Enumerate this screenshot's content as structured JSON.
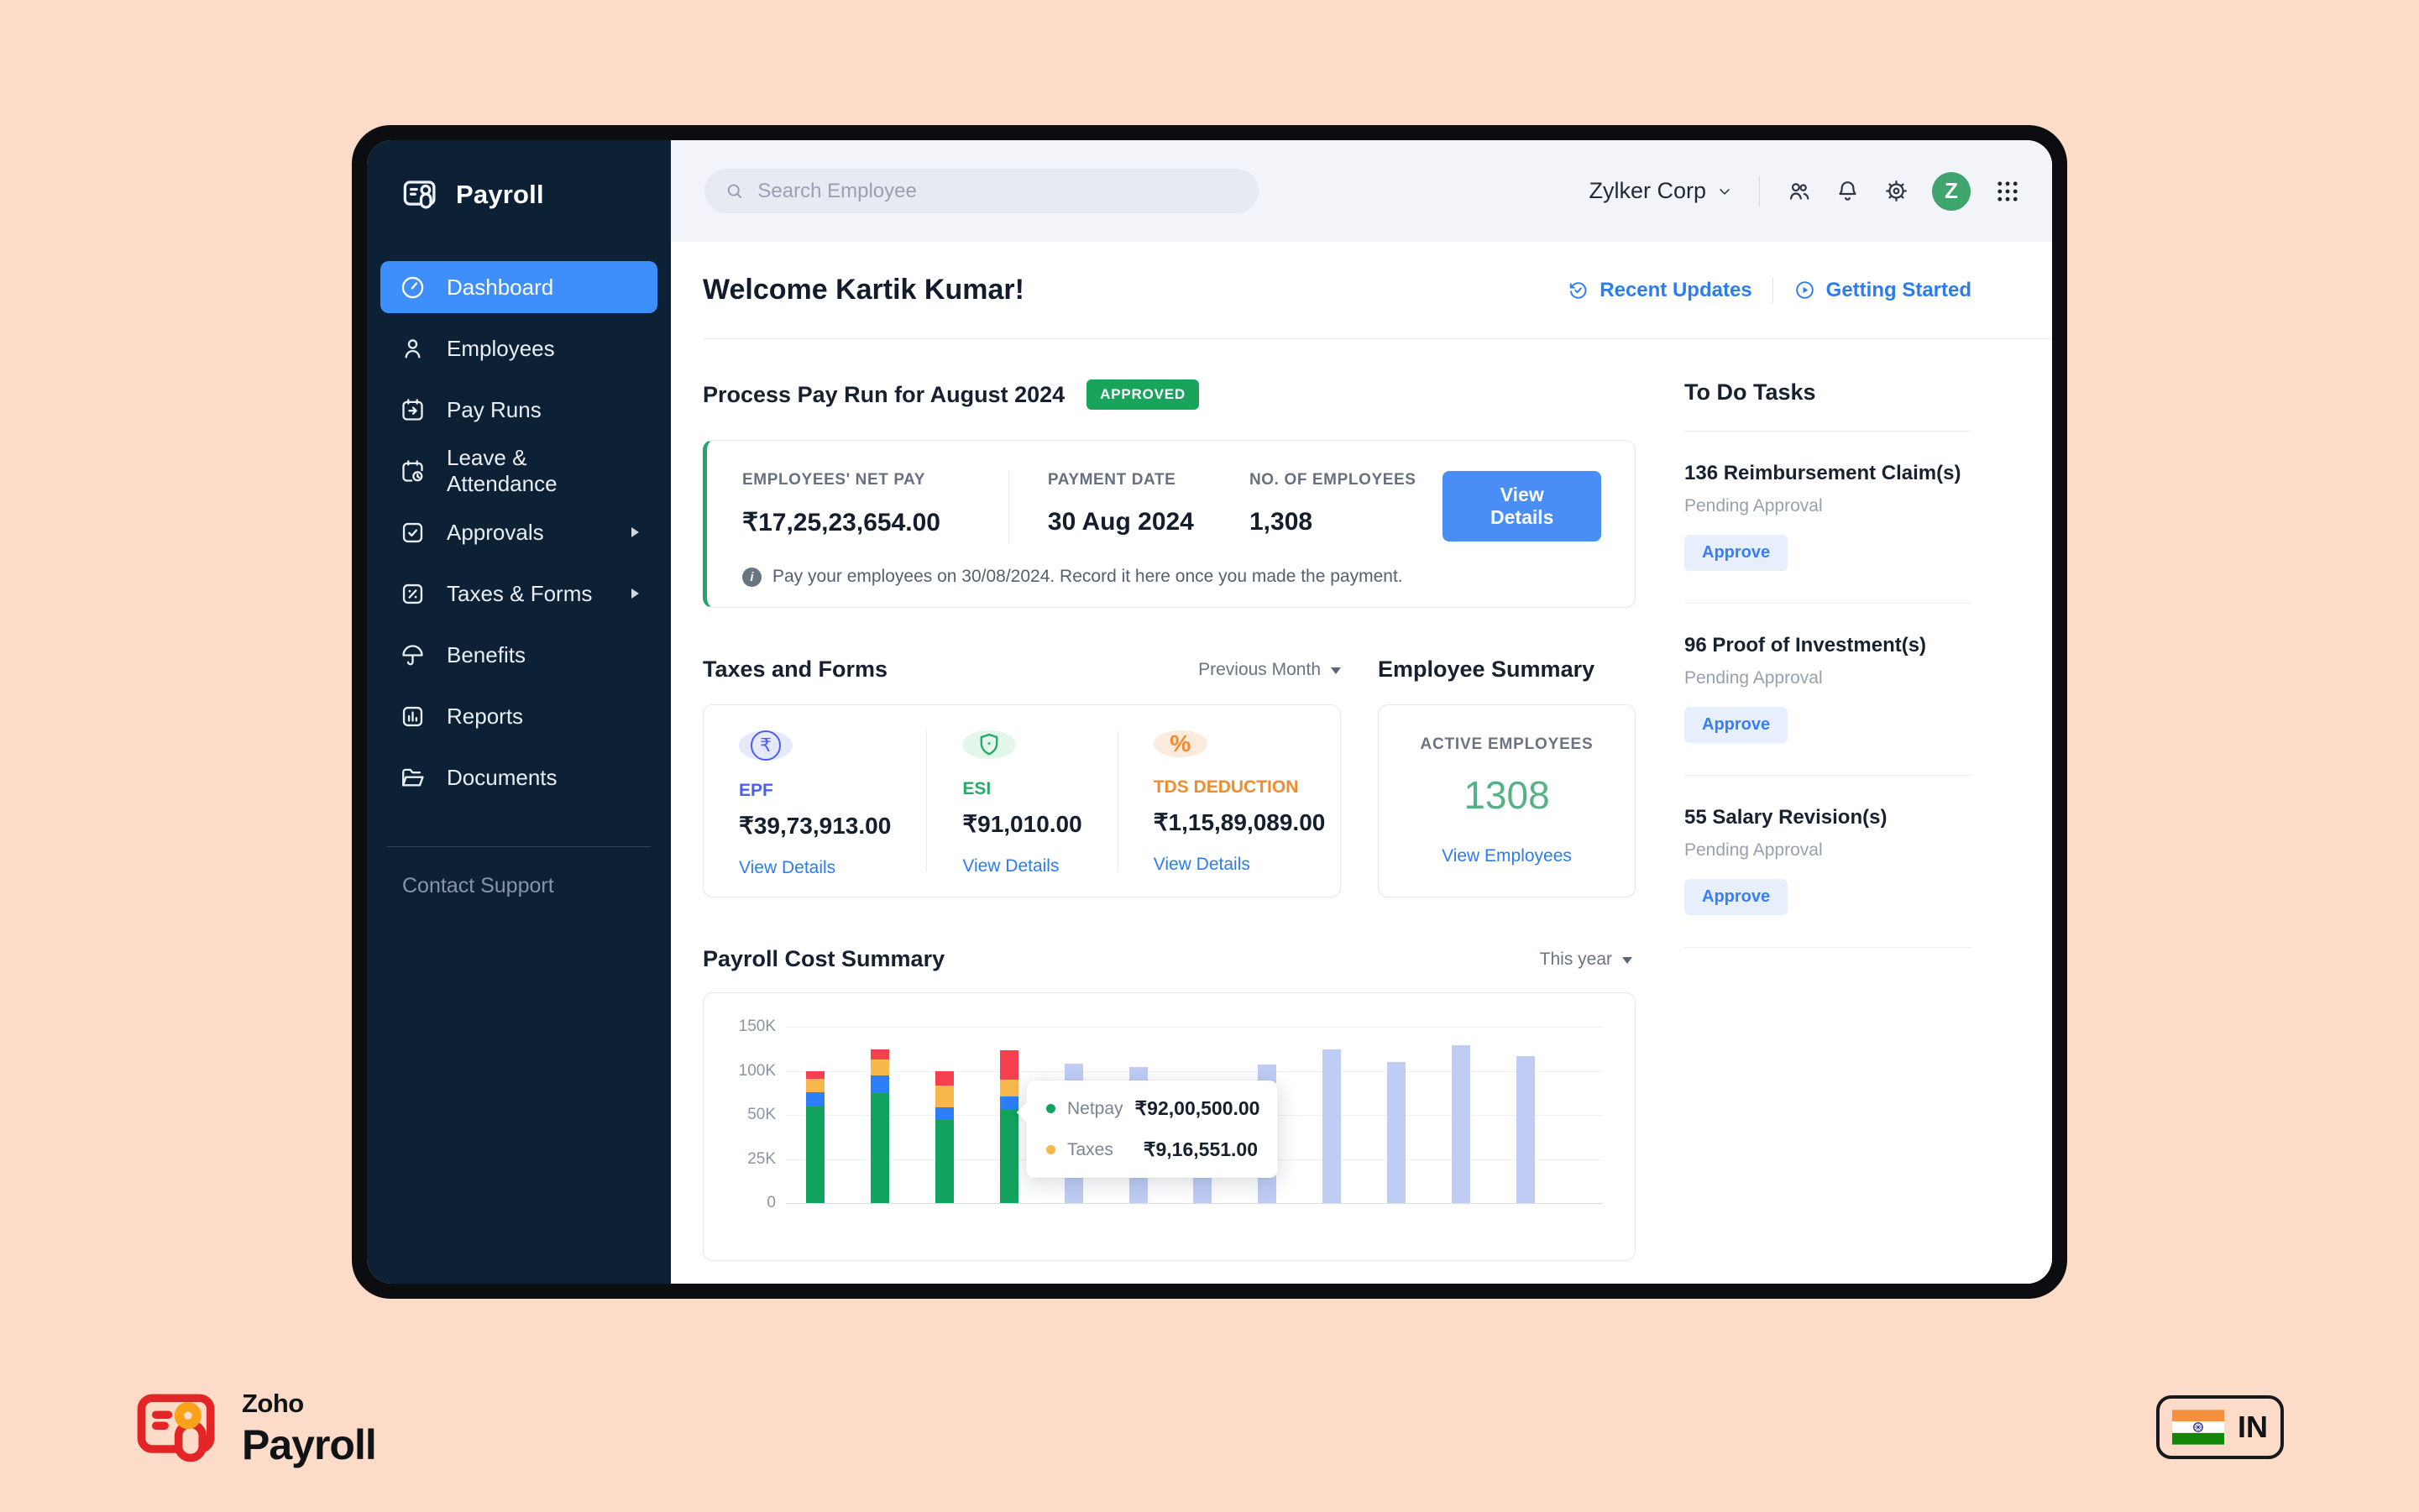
{
  "app": {
    "brand": "Payroll"
  },
  "sidebar": {
    "items": [
      {
        "label": "Dashboard",
        "active": true
      },
      {
        "label": "Employees"
      },
      {
        "label": "Pay Runs"
      },
      {
        "label": "Leave & Attendance"
      },
      {
        "label": "Approvals",
        "submenu": true
      },
      {
        "label": "Taxes & Forms",
        "submenu": true
      },
      {
        "label": "Benefits"
      },
      {
        "label": "Reports"
      },
      {
        "label": "Documents"
      }
    ],
    "contact": "Contact Support"
  },
  "topbar": {
    "search_placeholder": "Search Employee",
    "org": "Zylker Corp",
    "avatar_initial": "Z",
    "avatar_color": "#3fa56d"
  },
  "header": {
    "welcome": "Welcome Kartik Kumar!",
    "links": [
      {
        "label": "Recent Updates"
      },
      {
        "label": "Getting Started"
      }
    ]
  },
  "payrun": {
    "title": "Process Pay Run for August 2024",
    "status_badge": "APPROVED",
    "status_color": "#19a45b",
    "stats": [
      {
        "label": "EMPLOYEES' NET PAY",
        "value": "₹17,25,23,654.00"
      },
      {
        "label": "PAYMENT DATE",
        "value": "30 Aug 2024"
      },
      {
        "label": "NO. OF EMPLOYEES",
        "value": "1,308"
      }
    ],
    "cta": "View Details",
    "note": "Pay your employees on 30/08/2024. Record it here once you made the payment."
  },
  "taxes": {
    "title": "Taxes and Forms",
    "period": "Previous Month",
    "items": [
      {
        "label": "EPF",
        "value": "₹39,73,913.00",
        "link": "View Details",
        "color": "#4c5ff1",
        "bg": "#e6e9fd",
        "glyph": "₹"
      },
      {
        "label": "ESI",
        "value": "₹91,010.00",
        "link": "View Details",
        "color": "#2aa968",
        "bg": "#e3f6ea",
        "glyph": "shield"
      },
      {
        "label": "TDS DEDUCTION",
        "value": "₹1,15,89,089.00",
        "link": "View Details",
        "color": "#f28b2e",
        "bg": "#fcebdc",
        "glyph": "%"
      }
    ]
  },
  "employee_summary": {
    "title": "Employee Summary",
    "label": "ACTIVE EMPLOYEES",
    "count": "1308",
    "count_color": "#56b286",
    "link": "View Employees"
  },
  "todo": {
    "title": "To Do Tasks",
    "tasks": [
      {
        "title": "136 Reimbursement Claim(s)",
        "status": "Pending Approval",
        "action": "Approve"
      },
      {
        "title": "96 Proof of Investment(s)",
        "status": "Pending Approval",
        "action": "Approve"
      },
      {
        "title": "55 Salary Revision(s)",
        "status": "Pending Approval",
        "action": "Approve"
      }
    ]
  },
  "chart_data": {
    "type": "bar-stacked",
    "title": "Payroll Cost Summary",
    "period_selector": "This year",
    "grid": true,
    "x_labels": [],
    "y_unit": "K",
    "y_ticks": [
      "150K",
      "100K",
      "50K",
      "25K",
      "0"
    ],
    "y_tick_values": [
      150,
      100,
      50,
      25,
      0
    ],
    "series": [
      {
        "name": "Netpay",
        "color": "#12a35f"
      },
      {
        "name": "",
        "color": "#2d7ff7"
      },
      {
        "name": "Taxes",
        "color": "#f7b84b"
      },
      {
        "name": "",
        "color": "#f5404f"
      }
    ],
    "stacked_bars": [
      {
        "segments": [
          60,
          16,
          15,
          9
        ]
      },
      {
        "segments": [
          75,
          20,
          18,
          11
        ]
      },
      {
        "segments": [
          47,
          12,
          24,
          17
        ]
      },
      {
        "segments": [
          57,
          14,
          19,
          33
        ]
      }
    ],
    "projection_bars": [
      108,
      104,
      41,
      107,
      124,
      110,
      129,
      117
    ],
    "projection_color": "#bfcdf4",
    "tooltip": {
      "anchor_bar_index": 3,
      "rows": [
        {
          "label": "Netpay",
          "color": "#12a35f",
          "value": "₹92,00,500.00"
        },
        {
          "label": "Taxes",
          "color": "#f7b84b",
          "value": "₹9,16,551.00"
        }
      ]
    }
  },
  "footer": {
    "brand_top": "Zoho",
    "brand_bottom": "Payroll",
    "country": "IN"
  }
}
